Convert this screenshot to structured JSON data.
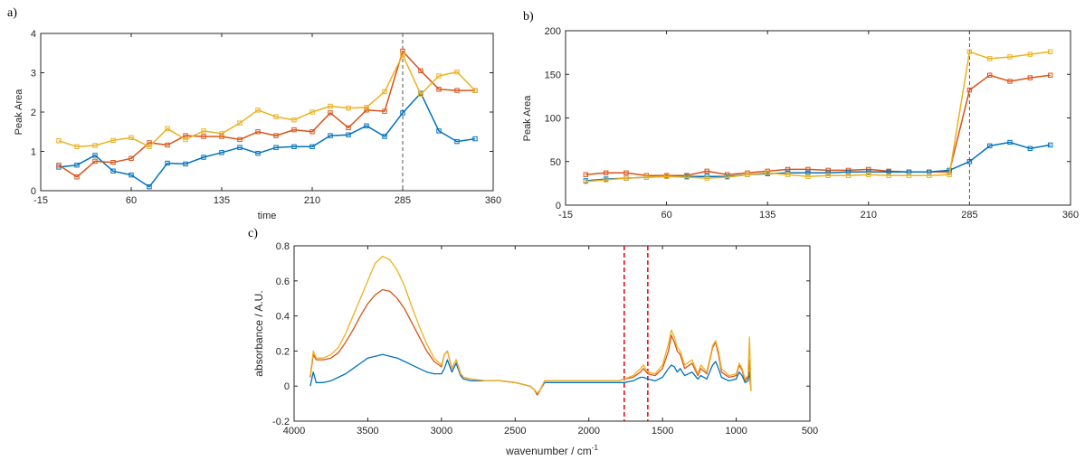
{
  "panel_labels": [
    "a)",
    "b)",
    "c)"
  ],
  "colors": {
    "blue": "#0072BD",
    "red": "#D95319",
    "yellow": "#EDB120",
    "marker_line": "#555555",
    "ir_marker": "#E8000B"
  },
  "chart_data": [
    {
      "type": "line",
      "panel": "a)",
      "xlabel": "time",
      "ylabel": "Peak Area",
      "xlim": [
        -15,
        360
      ],
      "ylim": [
        0,
        4
      ],
      "xticks": [
        -15,
        60,
        135,
        210,
        285,
        360
      ],
      "yticks": [
        0,
        1,
        2,
        3,
        4
      ],
      "grid": false,
      "vline_x": 285,
      "x": [
        0,
        15,
        30,
        45,
        60,
        75,
        90,
        105,
        120,
        135,
        150,
        165,
        180,
        195,
        210,
        225,
        240,
        255,
        270,
        285,
        300,
        315,
        330,
        345
      ],
      "series": [
        {
          "color": "blue",
          "values": [
            0.6,
            0.65,
            0.9,
            0.5,
            0.4,
            0.1,
            0.7,
            0.68,
            0.85,
            0.97,
            1.1,
            0.95,
            1.1,
            1.12,
            1.12,
            1.4,
            1.42,
            1.65,
            1.38,
            1.98,
            2.48,
            1.52,
            1.25,
            1.32
          ]
        },
        {
          "color": "red",
          "values": [
            0.65,
            0.35,
            0.75,
            0.72,
            0.82,
            1.22,
            1.16,
            1.4,
            1.38,
            1.38,
            1.3,
            1.5,
            1.4,
            1.55,
            1.5,
            1.98,
            1.6,
            2.05,
            2.02,
            3.55,
            3.05,
            2.58,
            2.55,
            2.55
          ]
        },
        {
          "color": "yellow",
          "values": [
            1.27,
            1.12,
            1.15,
            1.28,
            1.35,
            1.12,
            1.58,
            1.3,
            1.52,
            1.45,
            1.72,
            2.05,
            1.88,
            1.8,
            2.0,
            2.15,
            2.1,
            2.12,
            2.52,
            3.45,
            2.45,
            2.92,
            3.02,
            2.55
          ]
        }
      ]
    },
    {
      "type": "line",
      "panel": "b)",
      "xlabel": "",
      "ylabel": "Peak Area",
      "xlim": [
        -15,
        360
      ],
      "ylim": [
        0,
        200
      ],
      "xticks": [
        -15,
        60,
        135,
        210,
        285,
        360
      ],
      "yticks": [
        0,
        50,
        100,
        150,
        200
      ],
      "grid": false,
      "vline_x": 285,
      "x": [
        0,
        15,
        30,
        45,
        60,
        75,
        90,
        105,
        120,
        135,
        150,
        165,
        180,
        195,
        210,
        225,
        240,
        255,
        270,
        285,
        300,
        315,
        330,
        345
      ],
      "series": [
        {
          "color": "red",
          "values": [
            35,
            37,
            37,
            34,
            34,
            34,
            39,
            35,
            37,
            39,
            41,
            41,
            40,
            40,
            41,
            39,
            38,
            38,
            38,
            132,
            149,
            142,
            146,
            149
          ]
        },
        {
          "color": "blue",
          "values": [
            28,
            30,
            31,
            32,
            33,
            33,
            33,
            33,
            35,
            36,
            37,
            37,
            37,
            38,
            38,
            38,
            38,
            38,
            40,
            50,
            68,
            72,
            65,
            69
          ]
        },
        {
          "color": "yellow",
          "values": [
            27,
            29,
            31,
            32,
            33,
            32,
            31,
            32,
            35,
            37,
            35,
            33,
            34,
            34,
            35,
            34,
            34,
            34,
            35,
            176,
            168,
            170,
            173,
            176
          ]
        }
      ]
    },
    {
      "type": "line",
      "panel": "c)",
      "xlabel": "wavenumber / cm",
      "xlabel_sup": "-1",
      "ylabel": "absorbance / A.U.",
      "xlim": [
        4000,
        500
      ],
      "ylim": [
        -0.2,
        0.8
      ],
      "xticks": [
        4000,
        3500,
        3000,
        2500,
        2000,
        1500,
        1000,
        500
      ],
      "yticks": [
        -0.2,
        0,
        0.2,
        0.4,
        0.6,
        0.8
      ],
      "ytick_labels": [
        "-0.2",
        "0",
        "0.2",
        "0.4",
        "0.6",
        "0.8"
      ],
      "grid": false,
      "vlines_x": [
        1760,
        1600
      ],
      "x": [
        3890,
        3870,
        3850,
        3800,
        3750,
        3700,
        3650,
        3600,
        3550,
        3500,
        3450,
        3400,
        3350,
        3300,
        3250,
        3200,
        3150,
        3100,
        3050,
        3000,
        2980,
        2960,
        2930,
        2900,
        2870,
        2850,
        2800,
        2700,
        2600,
        2500,
        2400,
        2370,
        2350,
        2330,
        2300,
        2200,
        2100,
        2000,
        1900,
        1800,
        1760,
        1700,
        1650,
        1630,
        1600,
        1550,
        1500,
        1460,
        1440,
        1420,
        1400,
        1380,
        1350,
        1300,
        1260,
        1240,
        1200,
        1160,
        1140,
        1120,
        1100,
        1050,
        1000,
        980,
        960,
        940,
        920,
        910,
        900
      ],
      "series": [
        {
          "color": "blue",
          "values": [
            0.0,
            0.08,
            0.02,
            0.02,
            0.03,
            0.05,
            0.07,
            0.1,
            0.13,
            0.16,
            0.17,
            0.18,
            0.17,
            0.16,
            0.14,
            0.12,
            0.1,
            0.08,
            0.07,
            0.07,
            0.1,
            0.15,
            0.08,
            0.13,
            0.06,
            0.04,
            0.03,
            0.03,
            0.03,
            0.02,
            0.0,
            -0.02,
            -0.05,
            -0.02,
            0.02,
            0.02,
            0.02,
            0.02,
            0.02,
            0.02,
            0.02,
            0.03,
            0.05,
            0.05,
            0.04,
            0.03,
            0.05,
            0.1,
            0.12,
            0.11,
            0.08,
            0.1,
            0.06,
            0.08,
            0.04,
            0.06,
            0.04,
            0.12,
            0.14,
            0.1,
            0.05,
            0.03,
            0.04,
            0.08,
            0.06,
            0.02,
            0.03,
            0.08,
            -0.02
          ]
        },
        {
          "color": "red",
          "values": [
            0.05,
            0.18,
            0.15,
            0.15,
            0.16,
            0.19,
            0.25,
            0.32,
            0.4,
            0.47,
            0.52,
            0.55,
            0.54,
            0.5,
            0.44,
            0.36,
            0.28,
            0.2,
            0.14,
            0.11,
            0.18,
            0.2,
            0.1,
            0.15,
            0.07,
            0.05,
            0.04,
            0.03,
            0.03,
            0.02,
            0.0,
            -0.02,
            -0.05,
            -0.02,
            0.03,
            0.03,
            0.03,
            0.03,
            0.03,
            0.03,
            0.04,
            0.05,
            0.08,
            0.1,
            0.07,
            0.06,
            0.1,
            0.2,
            0.29,
            0.25,
            0.2,
            0.18,
            0.1,
            0.13,
            0.06,
            0.1,
            0.07,
            0.22,
            0.25,
            0.18,
            0.08,
            0.05,
            0.06,
            0.12,
            0.09,
            0.03,
            0.05,
            0.15,
            -0.03
          ]
        },
        {
          "color": "yellow",
          "values": [
            0.06,
            0.2,
            0.16,
            0.16,
            0.18,
            0.22,
            0.3,
            0.4,
            0.5,
            0.6,
            0.7,
            0.74,
            0.72,
            0.66,
            0.57,
            0.45,
            0.34,
            0.24,
            0.16,
            0.12,
            0.18,
            0.2,
            0.1,
            0.15,
            0.07,
            0.05,
            0.04,
            0.03,
            0.03,
            0.02,
            0.0,
            -0.02,
            -0.04,
            -0.02,
            0.03,
            0.03,
            0.03,
            0.03,
            0.03,
            0.03,
            0.04,
            0.06,
            0.1,
            0.12,
            0.08,
            0.07,
            0.12,
            0.24,
            0.32,
            0.28,
            0.22,
            0.2,
            0.12,
            0.15,
            0.07,
            0.12,
            0.08,
            0.23,
            0.26,
            0.2,
            0.1,
            0.06,
            0.07,
            0.13,
            0.1,
            0.04,
            0.06,
            0.28,
            -0.03
          ]
        }
      ]
    }
  ]
}
